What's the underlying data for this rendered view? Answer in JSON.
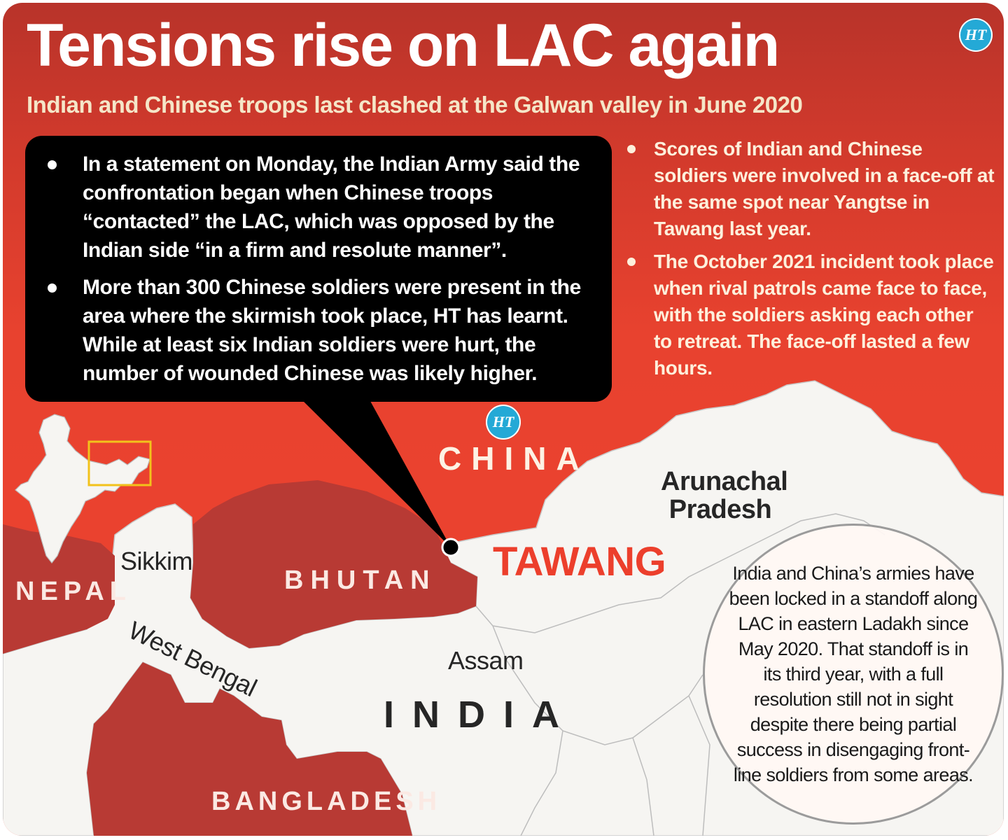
{
  "headline": {
    "title": "Tensions rise on LAC again",
    "subtitle": "Indian and Chinese troops last clashed at the Galwan valley in June 2020"
  },
  "branding": {
    "logo_text": "HT",
    "logo_color": "#24a9d6"
  },
  "callout": {
    "bullets": [
      "In a statement on Monday, the Indian Army said the confrontation began when Chinese troops “contacted” the LAC, which was opposed by the Indian side “in a firm and resolute manner”.",
      "More than 300 Chinese soldiers were present in the area where the skirmish took place, HT has learnt. While at least six Indian soldiers were hurt, the number of wounded Chinese was likely higher."
    ]
  },
  "side_notes": {
    "bullets": [
      "Scores of Indian and Chinese soldiers were involved in a face-off at the same spot near Yangtse in Tawang last year.",
      "The October 2021 incident took place when rival patrols came face to face, with the soldiers asking each other to retreat. The face-off lasted a few hours."
    ]
  },
  "map": {
    "labels": {
      "china": "CHINA",
      "arunachal": "Arunachal Pradesh",
      "tawang": "TAWANG",
      "bhutan": "BHUTAN",
      "nepal": "NEPAL",
      "sikkim": "Sikkim",
      "west_bengal": "West Bengal",
      "assam": "Assam",
      "india": "INDIA",
      "bangladesh": "BANGLADESH"
    },
    "colors": {
      "india_land": "#f6f5f2",
      "neighbour_land": "#b83a34",
      "china_background": "#ee432f",
      "tawang_text": "#ec3f2c",
      "inset_highlight": "#f2c21b"
    }
  },
  "info_circle": {
    "text": "India and China’s armies have been locked in a standoff along LAC in eastern Ladakh since May 2020. That standoff is in its third year, with a full resolution still not in sight despite there being partial success in disengaging front-line soldiers from some areas."
  }
}
